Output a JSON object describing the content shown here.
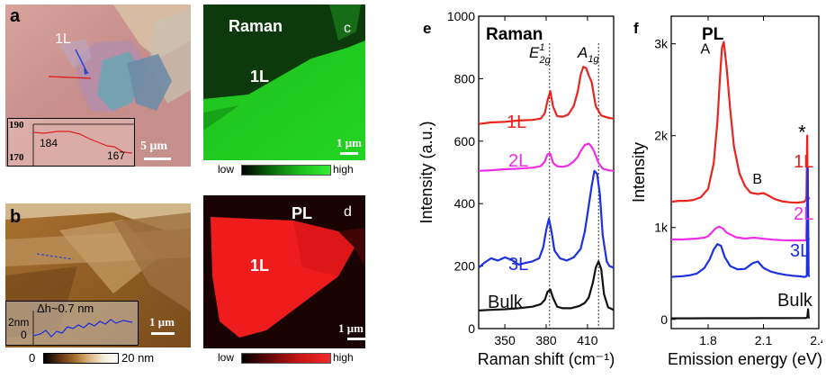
{
  "panels": {
    "a": {
      "letter": "a",
      "layer_label": "1L",
      "scale_label": "5 μm",
      "inset": {
        "y_top": "190",
        "y_bottom": "170",
        "left_value": "184",
        "right_value": "167"
      }
    },
    "b": {
      "letter": "b",
      "scale_label": "1 μm",
      "inset": {
        "step_label": "Δh~0.7 nm",
        "y_top": "2nm",
        "y_bottom": "0"
      },
      "colorbar": {
        "min": "0",
        "max": "20 nm"
      }
    },
    "c": {
      "letter": "c",
      "title": "Raman",
      "layer_label": "1L",
      "scale_label": "1 μm",
      "colorbar": {
        "low": "low",
        "high": "high"
      }
    },
    "d": {
      "letter": "d",
      "title": "PL",
      "layer_label": "1L",
      "scale_label": "1 μm",
      "colorbar": {
        "low": "low",
        "high": "high"
      }
    },
    "e": {
      "letter": "e"
    },
    "f": {
      "letter": "f"
    }
  },
  "colors": {
    "1L": "#e8241f",
    "2L": "#ee2ee6",
    "3L": "#1c30e0",
    "Bulk": "#111111"
  },
  "chart_data": [
    {
      "type": "line",
      "panel": "e",
      "title": "Raman",
      "xlabel": "Raman shift (cm⁻¹)",
      "ylabel": "Intensity (a.u.)",
      "xlim": [
        331,
        429
      ],
      "ylim": [
        0,
        1000
      ],
      "x_reversed": false,
      "xticks": [
        350,
        380,
        410
      ],
      "yticks": [
        0,
        200,
        400,
        600,
        800,
        1000
      ],
      "annotations": [
        "E¹2g",
        "A1g"
      ],
      "reference_lines_x": [
        382.5,
        418
      ],
      "series": [
        {
          "name": "1L",
          "x": [
            331,
            340,
            350,
            360,
            370,
            376,
            379,
            381,
            383,
            385,
            388,
            392,
            396,
            400,
            403,
            405,
            407,
            409,
            411,
            413,
            416,
            420,
            425,
            429
          ],
          "y": [
            655,
            660,
            662,
            666,
            668,
            672,
            690,
            730,
            760,
            710,
            680,
            678,
            685,
            712,
            760,
            812,
            838,
            834,
            810,
            790,
            712,
            682,
            675,
            672
          ]
        },
        {
          "name": "2L",
          "x": [
            331,
            340,
            350,
            360,
            370,
            376,
            379,
            381,
            383,
            385,
            388,
            392,
            396,
            400,
            403,
            405,
            408,
            411,
            413,
            415,
            418,
            421,
            425,
            429
          ],
          "y": [
            505,
            507,
            510,
            512,
            515,
            520,
            535,
            558,
            560,
            530,
            520,
            518,
            522,
            535,
            550,
            568,
            588,
            592,
            582,
            565,
            530,
            512,
            507,
            505
          ]
        },
        {
          "name": "3L",
          "x": [
            331,
            335,
            340,
            345,
            350,
            355,
            360,
            365,
            370,
            375,
            378,
            380,
            382,
            384,
            386,
            390,
            395,
            400,
            405,
            408,
            411,
            413,
            415,
            417,
            419,
            421,
            424,
            426,
            429
          ],
          "y": [
            195,
            210,
            225,
            218,
            228,
            220,
            205,
            210,
            215,
            225,
            262,
            315,
            352,
            308,
            250,
            225,
            218,
            228,
            255,
            310,
            395,
            455,
            505,
            495,
            430,
            300,
            215,
            200,
            195
          ]
        },
        {
          "name": "Bulk",
          "x": [
            331,
            340,
            350,
            360,
            370,
            376,
            379,
            381,
            383,
            385,
            388,
            392,
            398,
            404,
            408,
            411,
            414,
            416,
            418,
            420,
            422,
            425,
            429
          ],
          "y": [
            58,
            60,
            62,
            65,
            70,
            78,
            92,
            118,
            125,
            98,
            70,
            65,
            65,
            72,
            82,
            100,
            148,
            195,
            215,
            190,
            110,
            68,
            60
          ]
        }
      ]
    },
    {
      "type": "line",
      "panel": "f",
      "title": "PL",
      "xlabel": "Emission energy (eV)",
      "ylabel": "Intensity",
      "xlim": [
        2.4,
        1.6
      ],
      "ylim": [
        -100,
        3300
      ],
      "x_reversed": true,
      "xticks": [
        2.4,
        2.1,
        1.8
      ],
      "yticks": [
        0,
        1000,
        2000,
        3000
      ],
      "ytick_labels": [
        "0",
        "1k",
        "2k",
        "3k"
      ],
      "annotations": [
        "A",
        "B",
        "*"
      ],
      "series": [
        {
          "name": "1L",
          "x": [
            2.35,
            2.34,
            2.337,
            2.333,
            2.33,
            2.32,
            2.28,
            2.24,
            2.2,
            2.16,
            2.13,
            2.1,
            2.07,
            2.03,
            2.0,
            1.97,
            1.94,
            1.92,
            1.9,
            1.885,
            1.875,
            1.865,
            1.85,
            1.83,
            1.8,
            1.76,
            1.72,
            1.68,
            1.64,
            1.6
          ],
          "y": [
            1310,
            1330,
            2000,
            1350,
            1300,
            1280,
            1270,
            1275,
            1285,
            1310,
            1345,
            1375,
            1365,
            1380,
            1450,
            1590,
            1880,
            2280,
            2750,
            3020,
            2960,
            2650,
            2150,
            1700,
            1420,
            1330,
            1300,
            1290,
            1290,
            1280
          ]
        },
        {
          "name": "2L",
          "x": [
            2.35,
            2.34,
            2.336,
            2.332,
            2.33,
            2.3,
            2.25,
            2.2,
            2.15,
            2.1,
            2.05,
            2.0,
            1.95,
            1.9,
            1.88,
            1.86,
            1.84,
            1.82,
            1.8,
            1.78,
            1.74,
            1.7,
            1.66,
            1.62,
            1.6
          ],
          "y": [
            870,
            880,
            1320,
            890,
            860,
            860,
            860,
            862,
            868,
            878,
            890,
            880,
            895,
            945,
            990,
            1010,
            990,
            945,
            905,
            890,
            880,
            875,
            870,
            870,
            870
          ]
        },
        {
          "name": "3L",
          "x": [
            2.35,
            2.345,
            2.34,
            2.335,
            2.33,
            2.32,
            2.3,
            2.26,
            2.22,
            2.18,
            2.14,
            2.1,
            2.07,
            2.04,
            2.0,
            1.96,
            1.92,
            1.89,
            1.87,
            1.85,
            1.83,
            1.81,
            1.78,
            1.74,
            1.7,
            1.66,
            1.62,
            1.6
          ],
          "y": [
            465,
            475,
            1650,
            480,
            465,
            462,
            468,
            475,
            485,
            500,
            520,
            560,
            630,
            610,
            550,
            545,
            580,
            680,
            800,
            820,
            760,
            660,
            560,
            500,
            480,
            470,
            465,
            462
          ]
        },
        {
          "name": "Bulk",
          "x": [
            2.35,
            2.345,
            2.342,
            2.338,
            2.33,
            2.3,
            2.2,
            2.1,
            2.0,
            1.9,
            1.8,
            1.7,
            1.6
          ],
          "y": [
            15,
            20,
            110,
            25,
            15,
            15,
            14,
            14,
            13,
            13,
            13,
            12,
            12
          ]
        }
      ]
    }
  ]
}
